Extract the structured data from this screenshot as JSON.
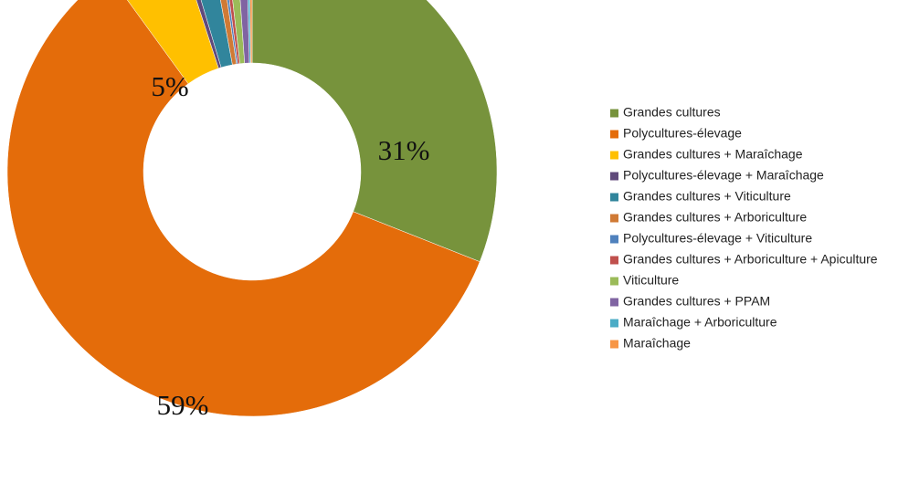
{
  "chart_data": {
    "type": "donut",
    "categories": [
      "Grandes cultures",
      "Polycultures-élevage",
      "Grandes cultures + Maraîchage",
      "Polycultures-élevage + Maraîchage",
      "Grandes cultures + Viticulture",
      "Grandes cultures + Arboriculture",
      "Polycultures-élevage + Viticulture",
      "Grandes cultures + Arboriculture + Apiculture",
      "Viticulture",
      "Grandes cultures + PPAM",
      "Maraîchage + Arboriculture",
      "Maraîchage"
    ],
    "values": [
      31,
      59,
      5,
      0.4,
      1.7,
      0.6,
      0.2,
      0.3,
      0.7,
      0.7,
      0.2,
      0.2
    ],
    "value_labels": [
      "31%",
      "59%",
      "5%",
      null,
      null,
      null,
      null,
      null,
      null,
      null,
      null,
      null
    ],
    "colors": [
      "#77933c",
      "#e46c0a",
      "#ffc000",
      "#604a7b",
      "#31859c",
      "#d07a35",
      "#4f81bd",
      "#c0504d",
      "#9bbb59",
      "#8064a2",
      "#4bacc6",
      "#f79646"
    ],
    "legend": "right"
  }
}
